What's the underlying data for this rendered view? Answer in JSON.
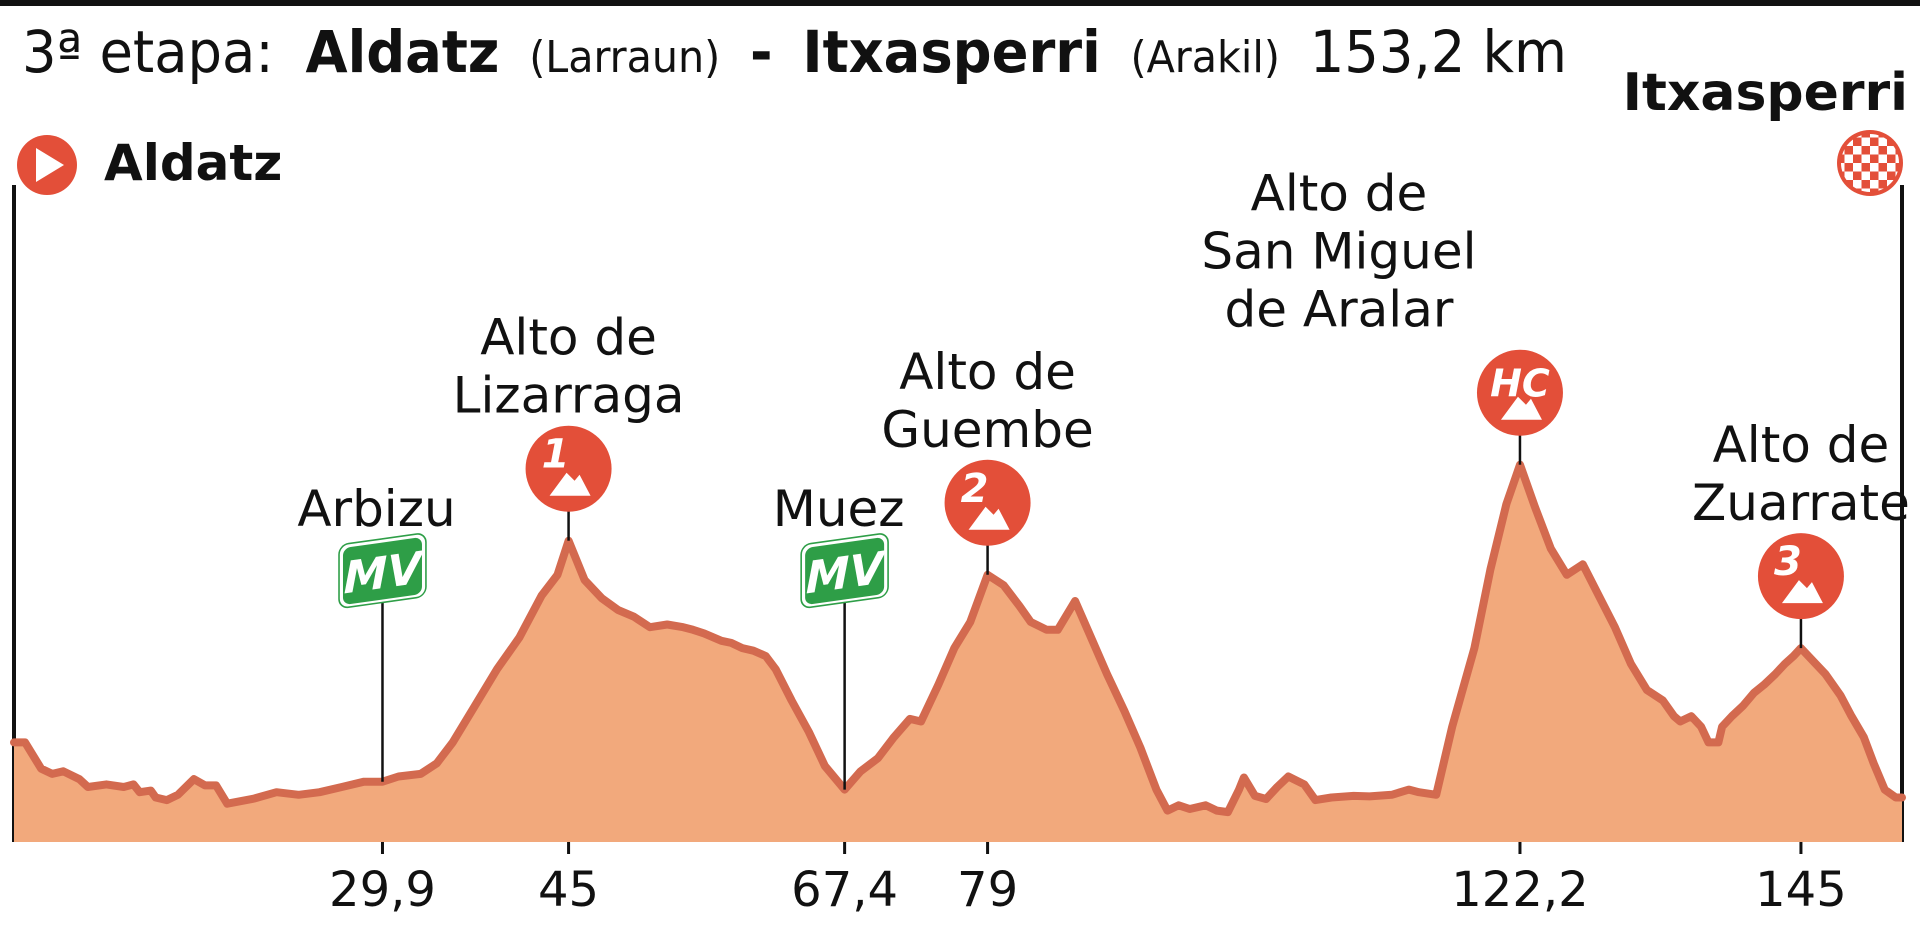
{
  "title": {
    "stage": "3ª etapa:",
    "start": "Aldatz",
    "start_area": "(Larraun)",
    "separator": "-",
    "finish": "Itxasperri",
    "finish_area": "(Arakil)",
    "distance": "153,2 km"
  },
  "start_label": "Aldatz",
  "finish_label": "Itxasperri",
  "colors": {
    "line": "#d36a4f",
    "fill": "#f2a97c",
    "badge": "#e34f39",
    "mv": "#2e9e47",
    "text": "#111111"
  },
  "chart_data": {
    "type": "area",
    "title": "3ª etapa: Aldatz (Larraun) - Itxasperri (Arakil) 153,2 km",
    "xlim": [
      0,
      153.2
    ],
    "x_tick_labels": [
      "29,9",
      "45",
      "67,4",
      "79",
      "122,2",
      "145"
    ],
    "x_ticks": [
      29.9,
      45,
      67.4,
      79,
      122.2,
      145
    ],
    "profile_units": "relative height 0-1",
    "profile": [
      [
        0,
        0.19
      ],
      [
        0.9,
        0.19
      ],
      [
        2.2,
        0.14
      ],
      [
        3.1,
        0.13
      ],
      [
        4.0,
        0.135
      ],
      [
        5.3,
        0.12
      ],
      [
        6.0,
        0.105
      ],
      [
        7.5,
        0.11
      ],
      [
        8.9,
        0.105
      ],
      [
        9.7,
        0.11
      ],
      [
        10.2,
        0.095
      ],
      [
        11.1,
        0.098
      ],
      [
        11.5,
        0.085
      ],
      [
        12.4,
        0.08
      ],
      [
        13.3,
        0.09
      ],
      [
        14.6,
        0.12
      ],
      [
        15.5,
        0.108
      ],
      [
        16.4,
        0.108
      ],
      [
        17.3,
        0.073
      ],
      [
        19.5,
        0.083
      ],
      [
        21.3,
        0.095
      ],
      [
        23.1,
        0.09
      ],
      [
        24.8,
        0.095
      ],
      [
        26.6,
        0.105
      ],
      [
        28.4,
        0.115
      ],
      [
        29.9,
        0.115
      ],
      [
        31.2,
        0.125
      ],
      [
        33.0,
        0.13
      ],
      [
        34.3,
        0.15
      ],
      [
        35.6,
        0.19
      ],
      [
        37.4,
        0.26
      ],
      [
        39.2,
        0.33
      ],
      [
        41.0,
        0.39
      ],
      [
        42.8,
        0.47
      ],
      [
        44.1,
        0.51
      ],
      [
        45.0,
        0.575
      ],
      [
        46.3,
        0.5
      ],
      [
        47.7,
        0.465
      ],
      [
        49.0,
        0.443
      ],
      [
        50.3,
        0.43
      ],
      [
        51.6,
        0.41
      ],
      [
        53.0,
        0.415
      ],
      [
        54.3,
        0.41
      ],
      [
        55.1,
        0.405
      ],
      [
        56.0,
        0.398
      ],
      [
        57.4,
        0.384
      ],
      [
        58.2,
        0.38
      ],
      [
        59.1,
        0.37
      ],
      [
        60.0,
        0.365
      ],
      [
        61.0,
        0.355
      ],
      [
        61.8,
        0.33
      ],
      [
        63.1,
        0.27
      ],
      [
        64.5,
        0.21
      ],
      [
        65.8,
        0.145
      ],
      [
        67.4,
        0.1
      ],
      [
        68.7,
        0.135
      ],
      [
        70.1,
        0.16
      ],
      [
        71.4,
        0.2
      ],
      [
        72.7,
        0.235
      ],
      [
        73.6,
        0.23
      ],
      [
        75.0,
        0.3
      ],
      [
        76.3,
        0.37
      ],
      [
        77.6,
        0.42
      ],
      [
        79.0,
        0.51
      ],
      [
        80.3,
        0.49
      ],
      [
        81.6,
        0.45
      ],
      [
        82.5,
        0.42
      ],
      [
        83.8,
        0.405
      ],
      [
        84.7,
        0.405
      ],
      [
        86.1,
        0.46
      ],
      [
        87.4,
        0.39
      ],
      [
        88.7,
        0.32
      ],
      [
        90.1,
        0.25
      ],
      [
        91.4,
        0.18
      ],
      [
        92.7,
        0.1
      ],
      [
        93.6,
        0.06
      ],
      [
        94.5,
        0.07
      ],
      [
        95.4,
        0.063
      ],
      [
        96.7,
        0.07
      ],
      [
        97.6,
        0.06
      ],
      [
        98.5,
        0.057
      ],
      [
        99.4,
        0.1
      ],
      [
        99.8,
        0.123
      ],
      [
        100.7,
        0.088
      ],
      [
        101.6,
        0.082
      ],
      [
        102.5,
        0.105
      ],
      [
        103.4,
        0.125
      ],
      [
        104.7,
        0.11
      ],
      [
        105.6,
        0.08
      ],
      [
        106.9,
        0.085
      ],
      [
        108.7,
        0.088
      ],
      [
        110.0,
        0.087
      ],
      [
        111.8,
        0.09
      ],
      [
        113.2,
        0.1
      ],
      [
        114.0,
        0.095
      ],
      [
        115.4,
        0.09
      ],
      [
        116.7,
        0.22
      ],
      [
        118.5,
        0.37
      ],
      [
        119.8,
        0.52
      ],
      [
        121.1,
        0.645
      ],
      [
        122.2,
        0.72
      ],
      [
        123.4,
        0.64
      ],
      [
        124.7,
        0.56
      ],
      [
        126.0,
        0.51
      ],
      [
        127.3,
        0.53
      ],
      [
        128.6,
        0.47
      ],
      [
        129.9,
        0.41
      ],
      [
        131.2,
        0.34
      ],
      [
        132.5,
        0.29
      ],
      [
        133.8,
        0.27
      ],
      [
        134.7,
        0.24
      ],
      [
        135.2,
        0.23
      ],
      [
        136.1,
        0.24
      ],
      [
        136.9,
        0.22
      ],
      [
        137.5,
        0.19
      ],
      [
        138.3,
        0.19
      ],
      [
        138.6,
        0.22
      ],
      [
        139.4,
        0.24
      ],
      [
        140.3,
        0.26
      ],
      [
        141.2,
        0.285
      ],
      [
        142.0,
        0.3
      ],
      [
        142.9,
        0.32
      ],
      [
        143.7,
        0.34
      ],
      [
        144.4,
        0.355
      ],
      [
        145.0,
        0.37
      ],
      [
        146.0,
        0.345
      ],
      [
        147.0,
        0.32
      ],
      [
        148.2,
        0.28
      ],
      [
        149.1,
        0.24
      ],
      [
        150.1,
        0.2
      ],
      [
        150.9,
        0.15
      ],
      [
        151.8,
        0.1
      ],
      [
        152.7,
        0.085
      ],
      [
        153.2,
        0.085
      ]
    ]
  },
  "sprints": [
    {
      "km": 29.9,
      "name": "Arbizu",
      "badge": "MV",
      "tick": "29,9"
    },
    {
      "km": 67.4,
      "name": "Muez",
      "badge": "MV",
      "tick": "67,4"
    }
  ],
  "climbs": [
    {
      "km": 45,
      "name_lines": [
        "Alto de",
        "Lizarraga"
      ],
      "category": "1",
      "tick": "45"
    },
    {
      "km": 79,
      "name_lines": [
        "Alto de",
        "Guembe"
      ],
      "category": "2",
      "tick": "79"
    },
    {
      "km": 122.2,
      "name_lines": [
        "Alto de",
        "San Miguel",
        "de Aralar"
      ],
      "category": "HC",
      "tick": "122,2"
    },
    {
      "km": 145,
      "name_lines": [
        "Alto de",
        "Zuarrate"
      ],
      "category": "3",
      "tick": "145"
    }
  ]
}
